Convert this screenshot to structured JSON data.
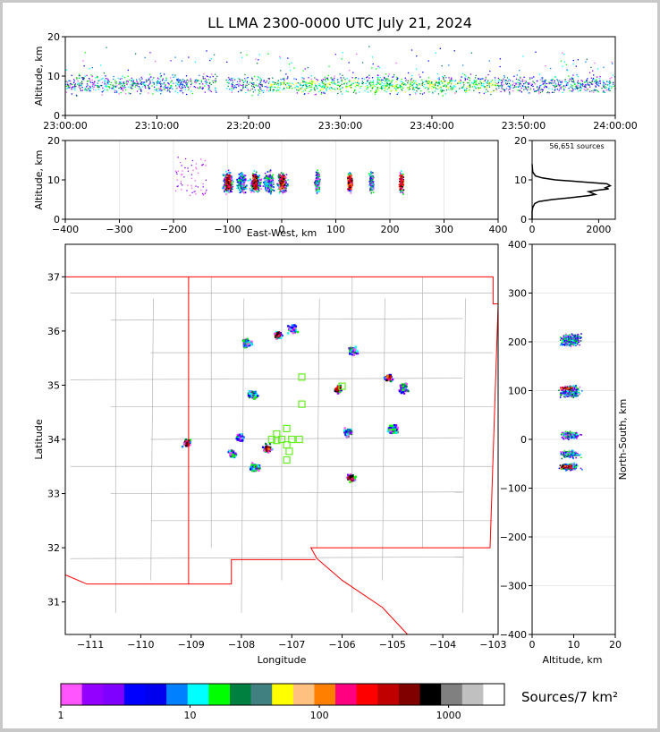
{
  "title": "LL LMA 2300-0000 UTC July 21, 2024",
  "colorbar_label": "Sources/7 km²",
  "colors": {
    "colorbar": [
      "#ff55ff",
      "#9400ff",
      "#7f00ff",
      "#0000ff",
      "#0000ee",
      "#0080ff",
      "#00ffff",
      "#00ff00",
      "#008040",
      "#408080",
      "#ffff00",
      "#ffc080",
      "#ff8000",
      "#ff0080",
      "#ff0000",
      "#c00000",
      "#800000",
      "#000000",
      "#808080",
      "#c0c0c0",
      "#ffffff"
    ],
    "border": "#ff0000",
    "counties": "#b4b4b4"
  },
  "chart_data": [
    {
      "panel": "altitude-time",
      "type": "heatmap",
      "xlabel": "",
      "ylabel": "Altitude, km",
      "xticks": [
        "23:00:00",
        "23:10:00",
        "23:20:00",
        "23:30:00",
        "23:40:00",
        "23:50:00",
        "24:00:00"
      ],
      "xlim_minutes": [
        0,
        60
      ],
      "ylim": [
        0,
        20
      ],
      "yticks": [
        "0",
        "10",
        "20"
      ],
      "gaps_minutes": [
        [
          16.5,
          17.5
        ]
      ],
      "altitude_band_km": [
        4,
        14
      ]
    },
    {
      "panel": "altitude-eastwest",
      "type": "heatmap",
      "xlabel": "East-West, km",
      "ylabel": "Altitude, km",
      "xlim": [
        -400,
        400
      ],
      "xticks": [
        "−400",
        "−300",
        "−200",
        "−100",
        "0",
        "100",
        "200",
        "300",
        "400"
      ],
      "ylim": [
        0,
        20
      ],
      "yticks": [
        "0",
        "10",
        "20"
      ],
      "clusters_x_km": [
        -100,
        -75,
        -50,
        -25,
        0,
        65,
        125,
        165,
        220
      ]
    },
    {
      "panel": "altitude-histogram",
      "type": "line",
      "annotation": "56,651 sources",
      "xlim": [
        0,
        2500
      ],
      "xticks": [
        "0",
        "2000"
      ],
      "ylim": [
        0,
        20
      ],
      "yticks": [
        "0",
        "10",
        "20"
      ],
      "series": [
        {
          "x": [
            0,
            0,
            20,
            80,
            200,
            600,
            1200,
            1700,
            1900,
            1700,
            2000,
            2300,
            2200,
            2350,
            2250,
            1500,
            700,
            300,
            100,
            20,
            0
          ],
          "y": [
            0,
            2,
            3,
            4,
            4.5,
            5,
            5.5,
            6,
            6.3,
            7,
            7.4,
            7.7,
            8,
            8.5,
            9,
            9.5,
            10,
            10.5,
            11,
            12,
            14
          ]
        }
      ]
    },
    {
      "panel": "plan-view-map",
      "type": "heatmap",
      "xlabel": "Longitude",
      "ylabel": "Latitude",
      "xlim": [
        -111.5,
        -102.9
      ],
      "xticks": [
        "−111",
        "−110",
        "−109",
        "−108",
        "−107",
        "−106",
        "−105",
        "−104",
        "−103"
      ],
      "ylim": [
        30.4,
        37.6
      ],
      "yticks": [
        "31",
        "32",
        "33",
        "34",
        "35",
        "36",
        "37"
      ],
      "clusters": [
        {
          "lon": -107.3,
          "lat": 35.95
        },
        {
          "lon": -107.0,
          "lat": 36.05
        },
        {
          "lon": -107.9,
          "lat": 35.8
        },
        {
          "lon": -106.1,
          "lat": 34.95
        },
        {
          "lon": -105.8,
          "lat": 35.65
        },
        {
          "lon": -104.8,
          "lat": 34.95
        },
        {
          "lon": -105.1,
          "lat": 35.15
        },
        {
          "lon": -105.0,
          "lat": 34.2
        },
        {
          "lon": -105.9,
          "lat": 34.15
        },
        {
          "lon": -105.85,
          "lat": 33.3
        },
        {
          "lon": -108.2,
          "lat": 33.75
        },
        {
          "lon": -107.75,
          "lat": 33.5
        },
        {
          "lon": -107.5,
          "lat": 33.85
        },
        {
          "lon": -108.05,
          "lat": 34.05
        },
        {
          "lon": -107.8,
          "lat": 34.85
        },
        {
          "lon": -109.1,
          "lat": 33.95
        }
      ],
      "stations": [
        {
          "lon": -106.8,
          "lat": 35.15
        },
        {
          "lon": -106.0,
          "lat": 34.98
        },
        {
          "lon": -106.8,
          "lat": 34.65
        },
        {
          "lon": -107.3,
          "lat": 34.1
        },
        {
          "lon": -107.1,
          "lat": 34.2
        },
        {
          "lon": -107.2,
          "lat": 34.0
        },
        {
          "lon": -107.4,
          "lat": 34.0
        },
        {
          "lon": -107.0,
          "lat": 34.0
        },
        {
          "lon": -107.1,
          "lat": 33.9
        },
        {
          "lon": -106.85,
          "lat": 34.0
        },
        {
          "lon": -107.05,
          "lat": 33.78
        },
        {
          "lon": -107.1,
          "lat": 33.62
        },
        {
          "lon": -107.3,
          "lat": 33.98
        }
      ]
    },
    {
      "panel": "northsouth-altitude",
      "type": "heatmap",
      "xlabel": "Altitude, km",
      "ylabel": "North-South, km",
      "xlim": [
        0,
        20
      ],
      "xticks": [
        "0",
        "10",
        "20"
      ],
      "ylim": [
        -400,
        400
      ],
      "yticks": [
        "−400",
        "−300",
        "−200",
        "−100",
        "0",
        "100",
        "200",
        "300",
        "400"
      ],
      "clusters_y_km": [
        210,
        200,
        105,
        95,
        10,
        -30,
        -55
      ]
    },
    {
      "panel": "colorbar",
      "type": "colorbar",
      "scale": "log",
      "ticks": [
        "1",
        "10",
        "100",
        "1000"
      ],
      "tick_values": [
        1,
        10,
        100,
        1000
      ],
      "range": [
        1,
        2700
      ]
    }
  ]
}
